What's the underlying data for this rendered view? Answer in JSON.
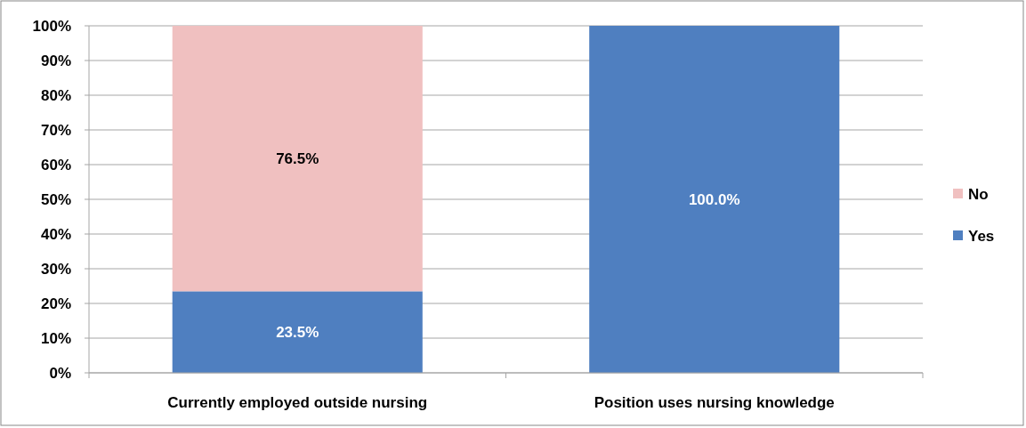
{
  "chart_data": {
    "type": "bar",
    "stacked": true,
    "categories": [
      "Currently employed outside nursing",
      "Position uses nursing knowledge"
    ],
    "series": [
      {
        "name": "Yes",
        "color": "#4f7fc0",
        "values": [
          23.5,
          100
        ],
        "value_labels": [
          "23.5%",
          "100.0%"
        ]
      },
      {
        "name": "No",
        "color": "#f0c0c0",
        "values": [
          76.5,
          0
        ],
        "value_labels": [
          "76.5%",
          null
        ]
      }
    ],
    "ylim": [
      0,
      100
    ],
    "yticks": [
      {
        "value": 0,
        "label": "0%"
      },
      {
        "value": 10,
        "label": "10%"
      },
      {
        "value": 20,
        "label": "20%"
      },
      {
        "value": 30,
        "label": "30%"
      },
      {
        "value": 40,
        "label": "40%"
      },
      {
        "value": 50,
        "label": "50%"
      },
      {
        "value": 60,
        "label": "60%"
      },
      {
        "value": 70,
        "label": "70%"
      },
      {
        "value": 80,
        "label": "80%"
      },
      {
        "value": 90,
        "label": "90%"
      },
      {
        "value": 100,
        "label": "100%"
      }
    ],
    "grid": "y",
    "legend": "right"
  }
}
